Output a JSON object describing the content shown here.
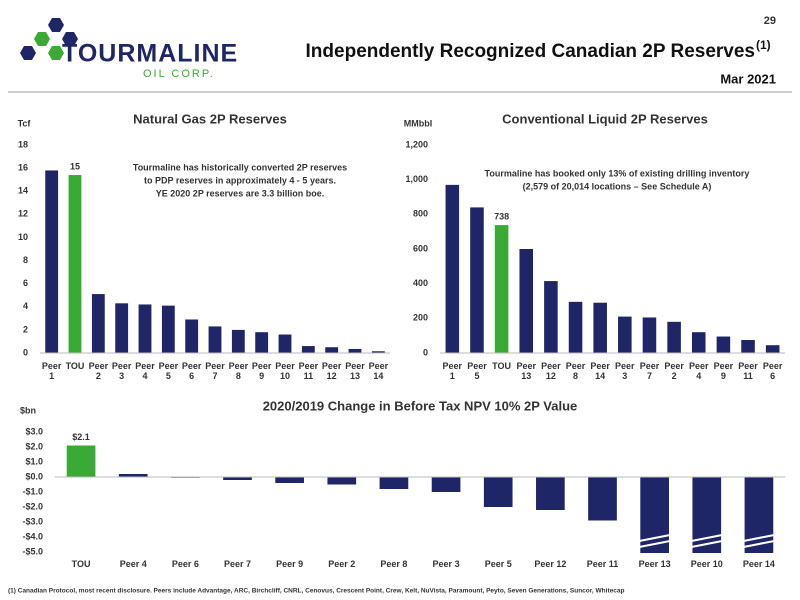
{
  "header": {
    "page_number": "29",
    "title": "Independently Recognized Canadian 2P Reserves",
    "title_sup": "(1)",
    "date": "Mar 2021"
  },
  "logo": {
    "name": "TOURMALINE",
    "sub": "OIL CORP."
  },
  "footnote": "(1) Canadian Protocol, most recent disclosure. Peers include Advantage, ARC, Birchcliff, CNRL, Cenovus, Crescent Point, Crew, Kelt, NuVista, Paramount, Peyto, Seven Generations, Suncor, Whitecap",
  "chart_data": [
    {
      "type": "bar",
      "title": "Natural Gas 2P Reserves",
      "y_label": "Tcf",
      "annotation": [
        "Tourmaline has historically converted 2P reserves",
        "to PDP reserves in approximately 4 - 5 years.",
        "YE 2020 2P reserves are 3.3 billion boe."
      ],
      "categories": [
        "Peer 1",
        "TOU",
        "Peer 2",
        "Peer 3",
        "Peer 4",
        "Peer 5",
        "Peer 6",
        "Peer 7",
        "Peer 8",
        "Peer 9",
        "Peer 10",
        "Peer 11",
        "Peer 12",
        "Peer 13",
        "Peer 14"
      ],
      "values": [
        15.8,
        15.4,
        5.1,
        4.3,
        4.2,
        4.1,
        2.9,
        2.3,
        2.0,
        1.8,
        1.6,
        0.6,
        0.5,
        0.35,
        0.15
      ],
      "value_labels": [
        null,
        "15",
        null,
        null,
        null,
        null,
        null,
        null,
        null,
        null,
        null,
        null,
        null,
        null,
        null
      ],
      "colors": [
        "#1f2667",
        "#3aa935",
        "#1f2667",
        "#1f2667",
        "#1f2667",
        "#1f2667",
        "#1f2667",
        "#1f2667",
        "#1f2667",
        "#1f2667",
        "#1f2667",
        "#1f2667",
        "#1f2667",
        "#1f2667",
        "#1f2667"
      ],
      "ylim": [
        0,
        18
      ],
      "yticks": [
        0,
        2,
        4,
        6,
        8,
        10,
        12,
        14,
        16,
        18
      ]
    },
    {
      "type": "bar",
      "title": "Conventional Liquid 2P Reserves",
      "y_label": "MMbbl",
      "annotation": [
        "Tourmaline has booked only 13% of existing drilling inventory",
        "(2,579 of 20,014 locations – See Schedule A)"
      ],
      "categories": [
        "Peer 1",
        "Peer 5",
        "TOU",
        "Peer 13",
        "Peer 12",
        "Peer 8",
        "Peer 14",
        "Peer 3",
        "Peer 7",
        "Peer 2",
        "Peer 4",
        "Peer 9",
        "Peer 11",
        "Peer 6"
      ],
      "values": [
        970,
        840,
        738,
        600,
        415,
        295,
        290,
        210,
        205,
        180,
        120,
        95,
        75,
        45
      ],
      "value_labels": [
        null,
        null,
        "738",
        null,
        null,
        null,
        null,
        null,
        null,
        null,
        null,
        null,
        null,
        null
      ],
      "colors": [
        "#1f2667",
        "#1f2667",
        "#3aa935",
        "#1f2667",
        "#1f2667",
        "#1f2667",
        "#1f2667",
        "#1f2667",
        "#1f2667",
        "#1f2667",
        "#1f2667",
        "#1f2667",
        "#1f2667",
        "#1f2667"
      ],
      "ylim": [
        0,
        1200
      ],
      "yticks": [
        0,
        200,
        400,
        600,
        800,
        {
          "value": 1000,
          "label": "1,000"
        },
        {
          "value": 1200,
          "label": "1,200"
        }
      ]
    },
    {
      "type": "bar",
      "title": "2020/2019 Change in Before Tax NPV 10% 2P Value",
      "y_label": "$bn",
      "categories": [
        "TOU",
        "Peer 4",
        "Peer 6",
        "Peer 7",
        "Peer 9",
        "Peer 2",
        "Peer 8",
        "Peer 3",
        "Peer 5",
        "Peer 12",
        "Peer 11",
        "Peer 13",
        "Peer 10",
        "Peer 14"
      ],
      "values": [
        2.1,
        0.2,
        -0.05,
        -0.2,
        -0.4,
        -0.5,
        -0.8,
        -1.0,
        -2.0,
        -2.2,
        -2.9,
        -5.5,
        -5.5,
        -5.5
      ],
      "value_labels": [
        "$2.1",
        null,
        null,
        null,
        null,
        null,
        null,
        null,
        null,
        null,
        null,
        null,
        null,
        null
      ],
      "colors": [
        "#3aa935",
        "#1f2667",
        "#1f2667",
        "#1f2667",
        "#1f2667",
        "#1f2667",
        "#1f2667",
        "#1f2667",
        "#1f2667",
        "#1f2667",
        "#1f2667",
        "#1f2667",
        "#1f2667",
        "#1f2667"
      ],
      "ylim": [
        -5,
        3
      ],
      "yticks": [
        {
          "value": -5,
          "label": "-$5.0"
        },
        {
          "value": -4,
          "label": "-$4.0"
        },
        {
          "value": -3,
          "label": "-$3.0"
        },
        {
          "value": -2,
          "label": "-$2.0"
        },
        {
          "value": -1,
          "label": "-$1.0"
        },
        {
          "value": 0,
          "label": "$0.0"
        },
        {
          "value": 1,
          "label": "$1.0"
        },
        {
          "value": 2,
          "label": "$2.0"
        },
        {
          "value": 3,
          "label": "$3.0"
        }
      ]
    }
  ]
}
